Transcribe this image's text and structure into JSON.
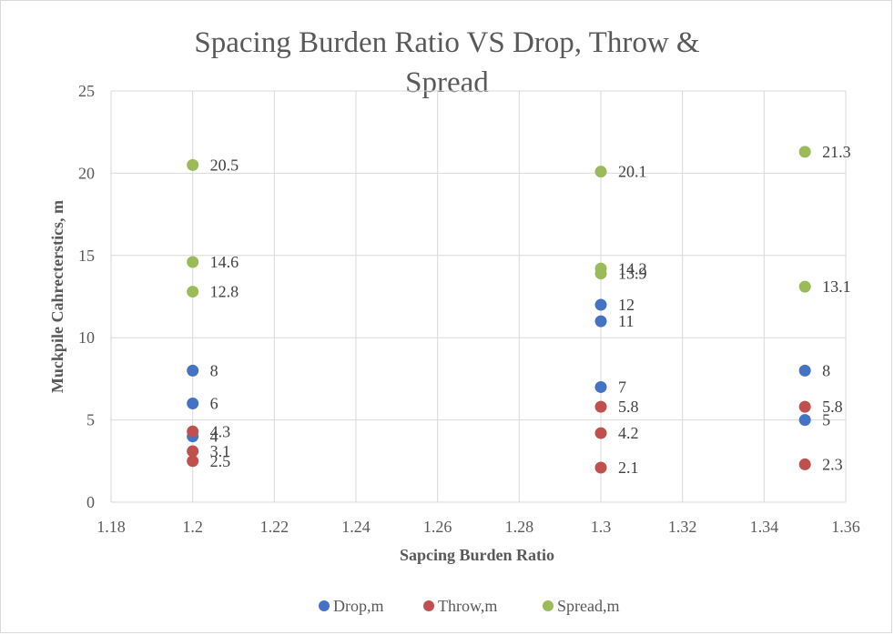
{
  "chart_data": {
    "type": "scatter",
    "title_lines": [
      "Spacing Burden Ratio VS Drop, Throw &",
      "Spread"
    ],
    "xlabel": "Sapcing Burden Ratio",
    "ylabel": "Muckpile Cahrecterstics, m",
    "xlim": [
      1.18,
      1.36
    ],
    "ylim": [
      0,
      25
    ],
    "x_ticks": [
      "1.18",
      "1.2",
      "1.22",
      "1.24",
      "1.26",
      "1.28",
      "1.3",
      "1.32",
      "1.34",
      "1.36"
    ],
    "y_ticks": [
      "0",
      "5",
      "10",
      "15",
      "20",
      "25"
    ],
    "grid": true,
    "legend_position": "bottom",
    "series": [
      {
        "name": "Drop,m",
        "color": "#4472c4",
        "points": [
          {
            "x": 1.2,
            "y": 8,
            "label": "8"
          },
          {
            "x": 1.2,
            "y": 6,
            "label": "6"
          },
          {
            "x": 1.2,
            "y": 4,
            "label": "4"
          },
          {
            "x": 1.3,
            "y": 12,
            "label": "12"
          },
          {
            "x": 1.3,
            "y": 11,
            "label": "11"
          },
          {
            "x": 1.3,
            "y": 7,
            "label": "7"
          },
          {
            "x": 1.35,
            "y": 8,
            "label": "8"
          },
          {
            "x": 1.35,
            "y": 5,
            "label": "5"
          }
        ]
      },
      {
        "name": "Throw,m",
        "color": "#c0504d",
        "points": [
          {
            "x": 1.2,
            "y": 4.3,
            "label": "4.3"
          },
          {
            "x": 1.2,
            "y": 3.1,
            "label": "3.1"
          },
          {
            "x": 1.2,
            "y": 2.5,
            "label": "2.5"
          },
          {
            "x": 1.3,
            "y": 5.8,
            "label": "5.8"
          },
          {
            "x": 1.3,
            "y": 4.2,
            "label": "4.2"
          },
          {
            "x": 1.3,
            "y": 2.1,
            "label": "2.1"
          },
          {
            "x": 1.35,
            "y": 5.8,
            "label": "5.8"
          },
          {
            "x": 1.35,
            "y": 2.3,
            "label": "2.3"
          }
        ]
      },
      {
        "name": "Spread,m",
        "color": "#9bbb59",
        "points": [
          {
            "x": 1.2,
            "y": 20.5,
            "label": "20.5"
          },
          {
            "x": 1.2,
            "y": 14.6,
            "label": "14.6"
          },
          {
            "x": 1.2,
            "y": 12.8,
            "label": "12.8"
          },
          {
            "x": 1.3,
            "y": 20.1,
            "label": "20.1"
          },
          {
            "x": 1.3,
            "y": 14.2,
            "label": "14.2"
          },
          {
            "x": 1.3,
            "y": 13.9,
            "label": "13.9"
          },
          {
            "x": 1.35,
            "y": 21.3,
            "label": "21.3"
          },
          {
            "x": 1.35,
            "y": 13.1,
            "label": "13.1"
          }
        ]
      }
    ]
  }
}
